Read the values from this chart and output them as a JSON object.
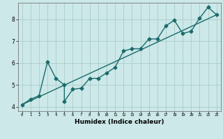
{
  "title": "",
  "xlabel": "Humidex (Indice chaleur)",
  "ylabel": "",
  "background_color": "#cce8e8",
  "grid_color": "#aacccc",
  "line_color": "#1a6b6b",
  "xlim": [
    -0.5,
    23.5
  ],
  "ylim": [
    3.8,
    8.75
  ],
  "xticks": [
    0,
    1,
    2,
    3,
    4,
    5,
    6,
    7,
    8,
    9,
    10,
    11,
    12,
    13,
    14,
    15,
    16,
    17,
    18,
    19,
    20,
    21,
    22,
    23
  ],
  "yticks": [
    4,
    5,
    6,
    7,
    8
  ],
  "zigzag_x": [
    0,
    1,
    2,
    3,
    4,
    5,
    5,
    6,
    7,
    8,
    9,
    10,
    11,
    12,
    13,
    14,
    15,
    16,
    17,
    18,
    19,
    20,
    21,
    22,
    23
  ],
  "zigzag_y": [
    4.1,
    4.35,
    4.5,
    6.05,
    5.3,
    5.0,
    4.25,
    4.8,
    4.85,
    5.3,
    5.3,
    5.55,
    5.8,
    6.55,
    6.65,
    6.65,
    7.1,
    7.1,
    7.7,
    7.95,
    7.35,
    7.45,
    8.05,
    8.55,
    8.2
  ],
  "trend_x": [
    0,
    23
  ],
  "trend_y": [
    4.1,
    8.2
  ],
  "marker_size": 2.5,
  "line_width": 1.0,
  "xlabel_fontsize": 6.5,
  "xlabel_fontweight": "bold",
  "tick_fontsize_x": 4.0,
  "tick_fontsize_y": 5.5
}
